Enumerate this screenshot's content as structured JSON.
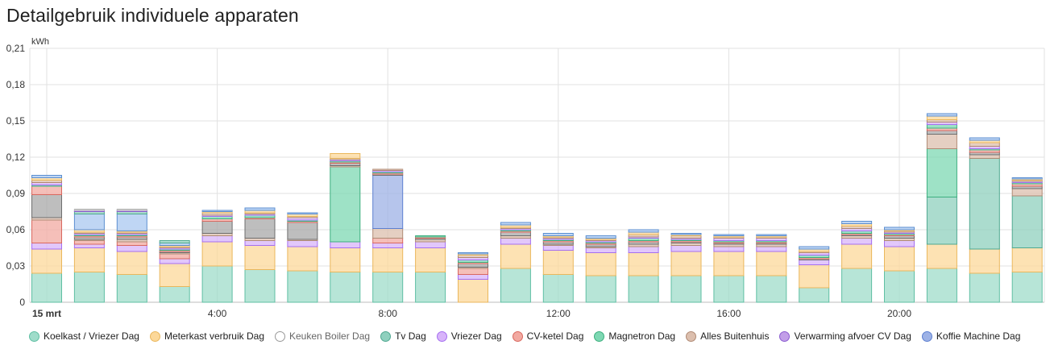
{
  "page_title": "Detailgebruik individuele apparaten",
  "chart_data": {
    "type": "bar",
    "stacked": true,
    "ylabel": "kWh",
    "ylim": [
      0,
      0.21
    ],
    "yticks": [
      "0",
      "0,03",
      "0,06",
      "0,09",
      "0,12",
      "0,15",
      "0,18",
      "0,21"
    ],
    "ytick_values": [
      0,
      0.03,
      0.06,
      0.09,
      0.12,
      0.15,
      0.18,
      0.21
    ],
    "xtick_labels": [
      {
        "hour": 0,
        "label": "15 mrt",
        "bold": true
      },
      {
        "hour": 4,
        "label": "4:00"
      },
      {
        "hour": 8,
        "label": "8:00"
      },
      {
        "hour": 12,
        "label": "12:00"
      },
      {
        "hour": 16,
        "label": "16:00"
      },
      {
        "hour": 20,
        "label": "20:00"
      }
    ],
    "grid": true,
    "legend_position": "bottom",
    "hours": [
      0,
      1,
      2,
      3,
      4,
      5,
      6,
      7,
      8,
      9,
      10,
      11,
      12,
      13,
      14,
      15,
      16,
      17,
      18,
      19,
      20,
      21,
      22,
      23
    ],
    "series": [
      {
        "name": "Koelkast / Vriezer Dag",
        "color": "#9fdcca",
        "stroke": "#5fbfa3",
        "hidden": false,
        "values": [
          0.024,
          0.025,
          0.023,
          0.013,
          0.03,
          0.027,
          0.026,
          0.025,
          0.025,
          0.025,
          0.0,
          0.028,
          0.023,
          0.022,
          0.022,
          0.022,
          0.022,
          0.022,
          0.012,
          0.028,
          0.026,
          0.028,
          0.024,
          0.025
        ]
      },
      {
        "name": "Meterkast verbruik Dag",
        "color": "#fcd899",
        "stroke": "#eab75c",
        "hidden": false,
        "values": [
          0.02,
          0.02,
          0.019,
          0.019,
          0.02,
          0.02,
          0.02,
          0.02,
          0.02,
          0.02,
          0.019,
          0.02,
          0.02,
          0.019,
          0.019,
          0.02,
          0.02,
          0.02,
          0.019,
          0.02,
          0.02,
          0.02,
          0.02,
          0.02
        ]
      },
      {
        "name": "Keuken Boiler Dag",
        "color": "#ffffff",
        "stroke": "#999999",
        "hidden": true,
        "values": [
          0,
          0,
          0,
          0,
          0,
          0,
          0,
          0,
          0,
          0,
          0,
          0,
          0,
          0,
          0,
          0,
          0,
          0,
          0,
          0,
          0,
          0,
          0,
          0
        ]
      },
      {
        "name": "Tv Dag",
        "color": "#8fd0be",
        "stroke": "#4fa890",
        "hidden": false,
        "values": [
          0.0,
          0.0,
          0.0,
          0.0,
          0.0,
          0.0,
          0.0,
          0.0,
          0.0,
          0.0,
          0.0,
          0.0,
          0.0,
          0.0,
          0.0,
          0.0,
          0.0,
          0.0,
          0.0,
          0.0,
          0.0,
          0.039,
          0.075,
          0.043
        ]
      },
      {
        "name": "Vriezer Dag",
        "color": "#d8b4fa",
        "stroke": "#a56ff0",
        "hidden": false,
        "values": [
          0.005,
          0.003,
          0.005,
          0.004,
          0.005,
          0.004,
          0.005,
          0.005,
          0.004,
          0.005,
          0.004,
          0.005,
          0.004,
          0.004,
          0.005,
          0.005,
          0.004,
          0.004,
          0.004,
          0.005,
          0.005,
          0.0,
          0.0,
          0.0
        ]
      },
      {
        "name": "CV-ketel Dag",
        "color": "#f2a9a1",
        "stroke": "#d9685f",
        "hidden": false,
        "values": [
          0.019,
          0.003,
          0.003,
          0.004,
          0.0,
          0.0,
          0.0,
          0.0,
          0.004,
          0.0,
          0.005,
          0.0,
          0.0,
          0.0,
          0.0,
          0.0,
          0.0,
          0.0,
          0.0,
          0.0,
          0.0,
          0.0,
          0.0,
          0.0
        ]
      },
      {
        "name": "Magnetron Dag",
        "color": "#7ed8b3",
        "stroke": "#3daf7f",
        "hidden": false,
        "values": [
          0.0,
          0.0,
          0.0,
          0.0,
          0.0,
          0.0,
          0.0,
          0.062,
          0.0,
          0.0,
          0.0,
          0.0,
          0.0,
          0.0,
          0.0,
          0.0,
          0.0,
          0.0,
          0.0,
          0.0,
          0.0,
          0.04,
          0.0,
          0.0
        ]
      },
      {
        "name": "Alles Buitenhuis",
        "color": "#dcbfae",
        "stroke": "#b08a74",
        "hidden": false,
        "values": [
          0.002,
          0.001,
          0.002,
          0.001,
          0.002,
          0.002,
          0.001,
          0.001,
          0.008,
          0.002,
          0.001,
          0.002,
          0.001,
          0.001,
          0.002,
          0.002,
          0.002,
          0.002,
          0.0,
          0.002,
          0.002,
          0.012,
          0.003,
          0.006
        ]
      },
      {
        "name": "Verwarming afvoer CV Dag",
        "color": "#c29ee8",
        "stroke": "#8a5bd0",
        "hidden": false,
        "values": [
          0.0,
          0.0,
          0.0,
          0.0,
          0.0,
          0.0,
          0.0,
          0.0,
          0.0,
          0.0,
          0.0,
          0.0,
          0.0,
          0.0,
          0.0,
          0.0,
          0.0,
          0.0,
          0.0,
          0.0,
          0.0,
          0.0,
          0.0,
          0.0
        ]
      },
      {
        "name": "Koffie Machine Dag",
        "color": "#9db2e6",
        "stroke": "#5c7fd0",
        "hidden": false,
        "values": [
          0.0,
          0.0,
          0.0,
          0.0,
          0.0,
          0.0,
          0.0,
          0.0,
          0.044,
          0.0,
          0.0,
          0.0,
          0.0,
          0.0,
          0.0,
          0.0,
          0.0,
          0.0,
          0.0,
          0.0,
          0.0,
          0.0,
          0.0,
          0.0
        ]
      }
    ],
    "other_segments": {
      "colors": [
        "#a8a8a8",
        "#f2a9a1",
        "#7ed8b3",
        "#d8b4fa",
        "#dcbfae",
        "#fcd899",
        "#a9c8f0",
        "#8fd0be",
        "#c29ee8",
        "#e6e6e6"
      ],
      "strokes": [
        "#6e6e6e",
        "#d9685f",
        "#3daf7f",
        "#a56ff0",
        "#b08a74",
        "#eab75c",
        "#5c8fd0",
        "#4fa890",
        "#8a5bd0",
        "#b0b0b0"
      ],
      "values": [
        [
          0.019,
          0.007,
          0.001,
          0.002,
          0.002,
          0.002,
          0.002
        ],
        [
          0.002,
          0.001,
          0.001,
          0.001,
          0.001,
          0.002,
          0.013,
          0.002,
          0.001,
          0.001
        ],
        [
          0.002,
          0.001,
          0.001,
          0.001,
          0.001,
          0.001,
          0.014,
          0.002,
          0.001,
          0.001
        ],
        [
          0.001,
          0.001,
          0.001,
          0.001,
          0.001,
          0.001,
          0.002,
          0.002
        ],
        [
          0.01,
          0.002,
          0.002,
          0.001,
          0.002,
          0.001,
          0.001
        ],
        [
          0.016,
          0.001,
          0.002,
          0.001,
          0.001,
          0.002,
          0.002
        ],
        [
          0.014,
          0.001,
          0.001,
          0.002,
          0.001,
          0.002,
          0.001
        ],
        [
          0.002,
          0.001,
          0.001,
          0.001,
          0.001,
          0.004
        ],
        [
          0.001,
          0.001,
          0.001,
          0.001,
          0.001
        ],
        [
          0.001,
          0.001,
          0.001
        ],
        [
          0.003,
          0.001,
          0.002,
          0.002,
          0.002,
          0.001,
          0.001
        ],
        [
          0.003,
          0.001,
          0.001,
          0.001,
          0.001,
          0.002,
          0.002
        ],
        [
          0.002,
          0.001,
          0.001,
          0.001,
          0.001,
          0.001,
          0.002
        ],
        [
          0.002,
          0.001,
          0.001,
          0.001,
          0.001,
          0.001,
          0.002
        ],
        [
          0.002,
          0.001,
          0.002,
          0.001,
          0.002,
          0.002,
          0.002
        ],
        [
          0.001,
          0.001,
          0.001,
          0.001,
          0.002,
          0.001,
          0.001
        ],
        [
          0.001,
          0.001,
          0.001,
          0.002,
          0.001,
          0.001,
          0.001
        ],
        [
          0.001,
          0.001,
          0.001,
          0.002,
          0.001,
          0.001,
          0.001
        ],
        [
          0.001,
          0.001,
          0.002,
          0.002,
          0.001,
          0.002,
          0.002
        ],
        [
          0.001,
          0.001,
          0.002,
          0.002,
          0.002,
          0.002,
          0.002
        ],
        [
          0.002,
          0.001,
          0.001,
          0.001,
          0.001,
          0.001,
          0.002
        ],
        [
          0.003,
          0.002,
          0.003,
          0.002,
          0.002,
          0.003,
          0.002
        ],
        [
          0.002,
          0.002,
          0.001,
          0.002,
          0.003,
          0.002,
          0.002
        ],
        [
          0.002,
          0.002,
          0.001,
          0.001,
          0.001,
          0.001,
          0.001
        ]
      ]
    }
  }
}
